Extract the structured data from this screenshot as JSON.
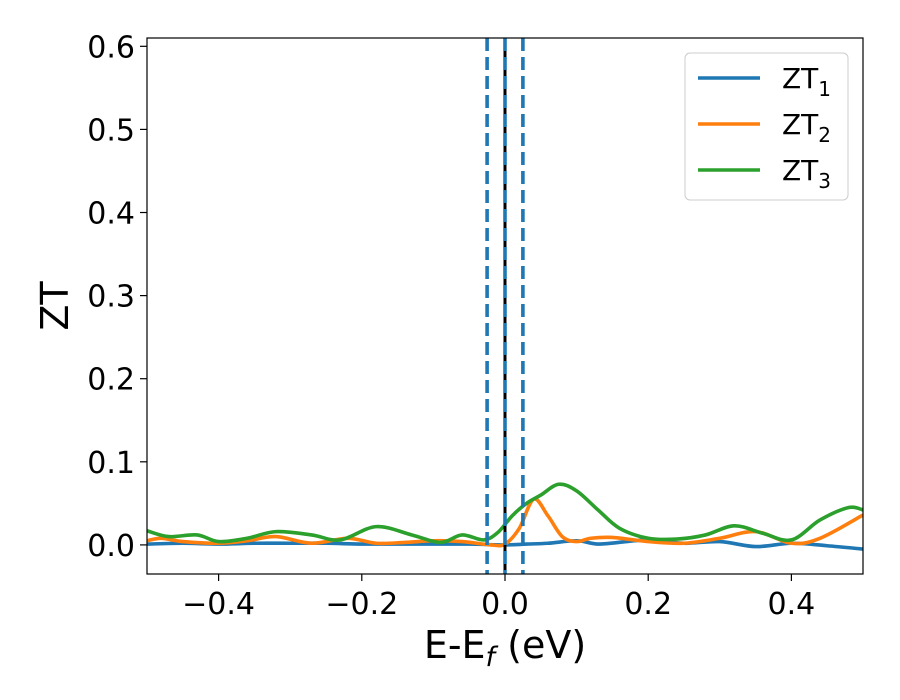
{
  "chart_data": {
    "type": "line",
    "title": "",
    "xlabel": "E-E_f (eV)",
    "xlabel_parts": {
      "main": "E-E",
      "sub": "f",
      "unit": " (eV)"
    },
    "ylabel": "ZT",
    "xlim": [
      -0.5,
      0.5
    ],
    "ylim": [
      -0.035,
      0.61
    ],
    "xticks": [
      -0.4,
      -0.2,
      0.0,
      0.2,
      0.4
    ],
    "xtick_labels": [
      "−0.4",
      "−0.2",
      "0.0",
      "0.2",
      "0.4"
    ],
    "yticks": [
      0.0,
      0.1,
      0.2,
      0.3,
      0.4,
      0.5,
      0.6
    ],
    "ytick_labels": [
      "0.0",
      "0.1",
      "0.2",
      "0.3",
      "0.4",
      "0.5",
      "0.6"
    ],
    "grid": false,
    "legend_position": "top-right",
    "vertical_lines": [
      {
        "x": -0.025,
        "style": "dashed",
        "color": "#1f77b4"
      },
      {
        "x": 0.025,
        "style": "dashed",
        "color": "#1f77b4"
      },
      {
        "x": 0.0,
        "style": "solid",
        "color": "#000000"
      },
      {
        "x": 0.0,
        "style": "dashed",
        "color": "#1f77b4"
      }
    ],
    "series": [
      {
        "name": "ZT1",
        "label_main": "ZT",
        "label_sub": "1",
        "color": "#1f77b4",
        "x": [
          -0.5,
          -0.45,
          -0.4,
          -0.35,
          -0.3,
          -0.25,
          -0.2,
          -0.15,
          -0.1,
          -0.05,
          0.0,
          0.03,
          0.06,
          0.1,
          0.13,
          0.17,
          0.2,
          0.25,
          0.3,
          0.35,
          0.4,
          0.45,
          0.5
        ],
        "y": [
          0.001,
          0.002,
          0.001,
          0.002,
          0.002,
          0.002,
          0.001,
          0.001,
          0.001,
          0.001,
          0.0,
          0.001,
          0.002,
          0.005,
          0.001,
          0.004,
          0.006,
          0.002,
          0.004,
          -0.002,
          0.002,
          -0.001,
          -0.005
        ]
      },
      {
        "name": "ZT2",
        "label_main": "ZT",
        "label_sub": "2",
        "color": "#ff7f0e",
        "x": [
          -0.5,
          -0.48,
          -0.45,
          -0.4,
          -0.36,
          -0.32,
          -0.27,
          -0.22,
          -0.18,
          -0.14,
          -0.1,
          -0.06,
          -0.02,
          0.0,
          0.02,
          0.04,
          0.06,
          0.08,
          0.1,
          0.12,
          0.15,
          0.2,
          0.25,
          0.3,
          0.35,
          0.4,
          0.44,
          0.5
        ],
        "y": [
          0.005,
          0.008,
          0.004,
          0.002,
          0.005,
          0.01,
          0.002,
          0.008,
          0.002,
          0.003,
          0.005,
          0.004,
          0.0,
          0.001,
          0.02,
          0.055,
          0.035,
          0.01,
          0.004,
          0.008,
          0.009,
          0.004,
          0.002,
          0.008,
          0.016,
          0.002,
          0.008,
          0.036
        ]
      },
      {
        "name": "ZT3",
        "label_main": "ZT",
        "label_sub": "3",
        "color": "#2ca02c",
        "x": [
          -0.5,
          -0.47,
          -0.43,
          -0.4,
          -0.36,
          -0.32,
          -0.27,
          -0.23,
          -0.18,
          -0.13,
          -0.09,
          -0.06,
          -0.03,
          -0.01,
          0.01,
          0.03,
          0.05,
          0.075,
          0.1,
          0.13,
          0.16,
          0.2,
          0.24,
          0.28,
          0.32,
          0.36,
          0.4,
          0.44,
          0.48,
          0.5
        ],
        "y": [
          0.017,
          0.01,
          0.012,
          0.004,
          0.008,
          0.016,
          0.012,
          0.006,
          0.022,
          0.012,
          0.003,
          0.012,
          0.006,
          0.015,
          0.035,
          0.05,
          0.06,
          0.073,
          0.065,
          0.042,
          0.02,
          0.008,
          0.007,
          0.012,
          0.023,
          0.014,
          0.006,
          0.03,
          0.045,
          0.042
        ]
      }
    ]
  }
}
